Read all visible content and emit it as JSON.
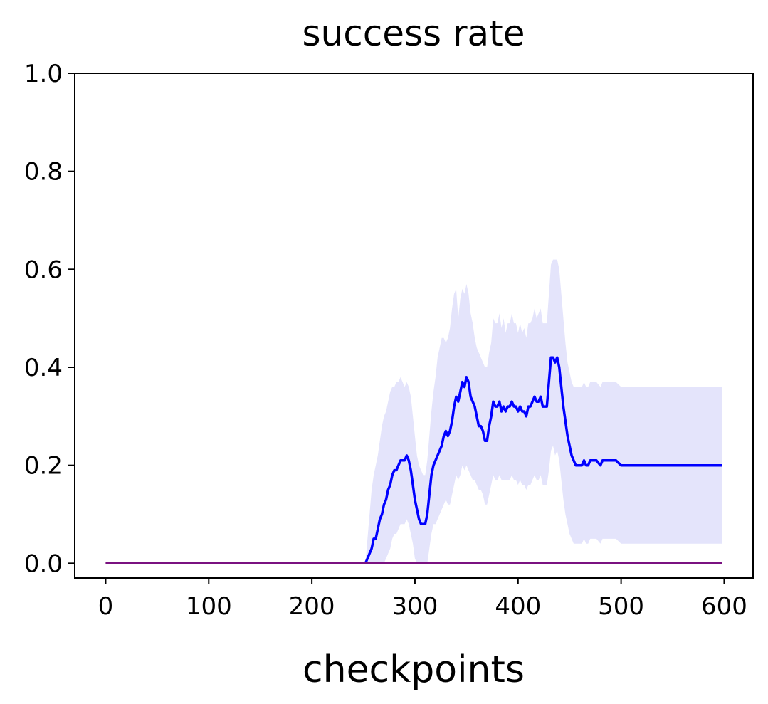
{
  "chart_data": {
    "type": "line",
    "title": "success rate",
    "xlabel": "checkpoints",
    "ylabel": "",
    "xlim": [
      -30,
      628
    ],
    "ylim": [
      -0.03,
      1.0
    ],
    "xticks": [
      "0",
      "100",
      "200",
      "300",
      "400",
      "500",
      "600"
    ],
    "xtick_values": [
      0,
      100,
      200,
      300,
      400,
      500,
      600
    ],
    "yticks": [
      "0.0",
      "0.2",
      "0.4",
      "0.6",
      "0.8",
      "1.0"
    ],
    "ytick_values": [
      0.0,
      0.2,
      0.4,
      0.6,
      0.8,
      1.0
    ],
    "grid": false,
    "series": [
      {
        "color": "#0000ff",
        "band_color": "#e4e4fb",
        "x": [
          252,
          254,
          256,
          258,
          260,
          262,
          264,
          266,
          268,
          270,
          272,
          274,
          276,
          278,
          280,
          282,
          284,
          286,
          288,
          290,
          292,
          294,
          296,
          298,
          300,
          302,
          304,
          306,
          308,
          310,
          312,
          314,
          316,
          318,
          320,
          322,
          324,
          326,
          328,
          330,
          332,
          334,
          336,
          338,
          340,
          342,
          344,
          346,
          348,
          350,
          352,
          354,
          356,
          358,
          360,
          362,
          364,
          366,
          368,
          370,
          372,
          374,
          376,
          378,
          380,
          382,
          384,
          386,
          388,
          390,
          392,
          394,
          396,
          398,
          400,
          402,
          404,
          406,
          408,
          410,
          412,
          414,
          416,
          418,
          420,
          422,
          424,
          426,
          428,
          430,
          432,
          434,
          436,
          438,
          440,
          442,
          444,
          446,
          448,
          450,
          452,
          454,
          456,
          458,
          460,
          462,
          464,
          466,
          468,
          470,
          472,
          476,
          480,
          482,
          484,
          490,
          495,
          500,
          520,
          560,
          598
        ],
        "values": [
          0.0,
          0.01,
          0.02,
          0.03,
          0.05,
          0.05,
          0.07,
          0.09,
          0.1,
          0.12,
          0.13,
          0.15,
          0.16,
          0.18,
          0.19,
          0.19,
          0.2,
          0.21,
          0.21,
          0.21,
          0.22,
          0.21,
          0.19,
          0.16,
          0.13,
          0.11,
          0.09,
          0.08,
          0.08,
          0.08,
          0.1,
          0.14,
          0.18,
          0.2,
          0.21,
          0.22,
          0.23,
          0.24,
          0.26,
          0.27,
          0.26,
          0.27,
          0.29,
          0.32,
          0.34,
          0.33,
          0.35,
          0.37,
          0.36,
          0.38,
          0.37,
          0.34,
          0.33,
          0.32,
          0.3,
          0.28,
          0.28,
          0.27,
          0.25,
          0.25,
          0.28,
          0.3,
          0.33,
          0.32,
          0.32,
          0.33,
          0.31,
          0.32,
          0.31,
          0.32,
          0.32,
          0.33,
          0.32,
          0.32,
          0.31,
          0.32,
          0.31,
          0.31,
          0.3,
          0.32,
          0.32,
          0.33,
          0.34,
          0.33,
          0.33,
          0.34,
          0.32,
          0.32,
          0.32,
          0.37,
          0.42,
          0.42,
          0.41,
          0.42,
          0.4,
          0.36,
          0.32,
          0.29,
          0.26,
          0.24,
          0.22,
          0.21,
          0.2,
          0.2,
          0.2,
          0.2,
          0.21,
          0.2,
          0.2,
          0.21,
          0.21,
          0.21,
          0.2,
          0.21,
          0.21,
          0.21,
          0.21,
          0.2,
          0.2,
          0.2,
          0.2
        ],
        "band_upper": [
          0.0,
          0.05,
          0.1,
          0.15,
          0.18,
          0.2,
          0.22,
          0.25,
          0.28,
          0.3,
          0.31,
          0.33,
          0.35,
          0.36,
          0.36,
          0.37,
          0.37,
          0.38,
          0.37,
          0.36,
          0.37,
          0.36,
          0.34,
          0.3,
          0.26,
          0.22,
          0.2,
          0.19,
          0.18,
          0.18,
          0.21,
          0.26,
          0.31,
          0.35,
          0.38,
          0.42,
          0.44,
          0.46,
          0.46,
          0.45,
          0.46,
          0.48,
          0.52,
          0.55,
          0.56,
          0.5,
          0.54,
          0.56,
          0.55,
          0.57,
          0.55,
          0.51,
          0.49,
          0.46,
          0.44,
          0.43,
          0.42,
          0.41,
          0.4,
          0.4,
          0.43,
          0.45,
          0.5,
          0.49,
          0.49,
          0.51,
          0.48,
          0.5,
          0.47,
          0.49,
          0.49,
          0.51,
          0.49,
          0.49,
          0.47,
          0.49,
          0.47,
          0.48,
          0.46,
          0.49,
          0.49,
          0.5,
          0.52,
          0.5,
          0.51,
          0.52,
          0.49,
          0.49,
          0.49,
          0.55,
          0.61,
          0.62,
          0.62,
          0.62,
          0.6,
          0.55,
          0.5,
          0.45,
          0.41,
          0.39,
          0.37,
          0.36,
          0.36,
          0.36,
          0.36,
          0.36,
          0.37,
          0.36,
          0.36,
          0.37,
          0.37,
          0.37,
          0.36,
          0.37,
          0.37,
          0.37,
          0.37,
          0.36,
          0.36,
          0.36,
          0.36
        ],
        "band_lower": [
          0.0,
          0.0,
          0.0,
          0.0,
          0.0,
          0.0,
          0.0,
          0.0,
          0.0,
          0.0,
          0.01,
          0.02,
          0.03,
          0.05,
          0.06,
          0.06,
          0.07,
          0.08,
          0.08,
          0.08,
          0.09,
          0.08,
          0.06,
          0.04,
          0.01,
          0.0,
          0.0,
          0.0,
          0.0,
          0.0,
          0.0,
          0.03,
          0.06,
          0.08,
          0.08,
          0.09,
          0.1,
          0.11,
          0.12,
          0.13,
          0.12,
          0.12,
          0.14,
          0.16,
          0.18,
          0.17,
          0.18,
          0.2,
          0.19,
          0.2,
          0.19,
          0.18,
          0.17,
          0.17,
          0.16,
          0.15,
          0.15,
          0.14,
          0.12,
          0.12,
          0.14,
          0.16,
          0.18,
          0.17,
          0.17,
          0.18,
          0.17,
          0.17,
          0.17,
          0.17,
          0.17,
          0.18,
          0.17,
          0.17,
          0.16,
          0.17,
          0.16,
          0.16,
          0.15,
          0.16,
          0.16,
          0.17,
          0.18,
          0.17,
          0.17,
          0.18,
          0.16,
          0.16,
          0.16,
          0.19,
          0.23,
          0.24,
          0.22,
          0.23,
          0.21,
          0.17,
          0.13,
          0.1,
          0.08,
          0.06,
          0.05,
          0.04,
          0.04,
          0.04,
          0.04,
          0.04,
          0.05,
          0.04,
          0.04,
          0.05,
          0.05,
          0.05,
          0.04,
          0.05,
          0.05,
          0.05,
          0.05,
          0.04,
          0.04,
          0.04,
          0.04
        ]
      },
      {
        "color": "#7a1180",
        "x": [
          0,
          598
        ],
        "values": [
          0.0,
          0.0
        ]
      }
    ]
  }
}
